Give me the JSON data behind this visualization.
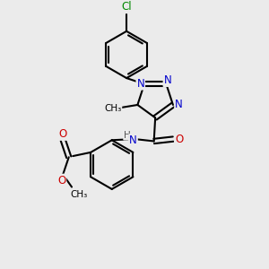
{
  "bg_color": "#ebebeb",
  "atom_colors": {
    "C": "#000000",
    "N": "#0000cc",
    "O": "#cc0000",
    "Cl": "#008800",
    "H": "#555555"
  },
  "bond_color": "#000000",
  "bond_width": 1.5,
  "dbo": 0.12,
  "font_size_atoms": 8.5,
  "font_size_small": 7.5
}
